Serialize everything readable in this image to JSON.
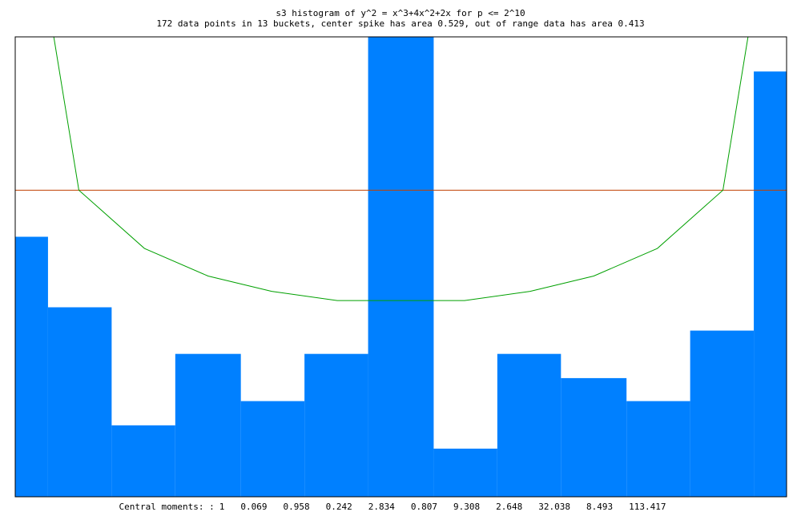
{
  "chart_data": {
    "type": "histogram",
    "title": "s3 histogram of y^2 = x^3+4x^2+2x for p <= 2^10",
    "subtitle": "172 data points in 13 buckets, center spike has area 0.529, out of range data has area 0.413",
    "bins": [
      -2,
      -1.83,
      -1.5,
      -1.17,
      -0.83,
      -0.5,
      -0.17,
      0.17,
      0.5,
      0.83,
      1.17,
      1.5,
      1.83,
      2
    ],
    "values": [
      0.848,
      0.618,
      0.233,
      0.466,
      0.312,
      0.466,
      1.5,
      0.157,
      0.466,
      0.387,
      0.312,
      0.542,
      1.387
    ],
    "color": "#0080ff",
    "xlim": [
      -2,
      2
    ],
    "ylim": [
      0,
      1.5
    ],
    "curve": {
      "color": "#00a000",
      "x": [
        -1.8,
        -1.67,
        -1.33,
        -1,
        -0.67,
        -0.33,
        0,
        0.33,
        0.67,
        1,
        1.33,
        1.67,
        1.8
      ],
      "values": [
        1.5,
        1.0,
        0.81,
        0.72,
        0.67,
        0.64,
        0.64,
        0.64,
        0.67,
        0.72,
        0.81,
        1.0,
        1.5
      ]
    },
    "reference_line": {
      "value": 1,
      "color": "#c04000"
    },
    "moments_label": "Central moments: :",
    "moments": [
      1,
      0.069,
      0.958,
      0.242,
      2.834,
      0.807,
      9.308,
      2.648,
      32.038,
      8.493,
      113.417
    ]
  }
}
